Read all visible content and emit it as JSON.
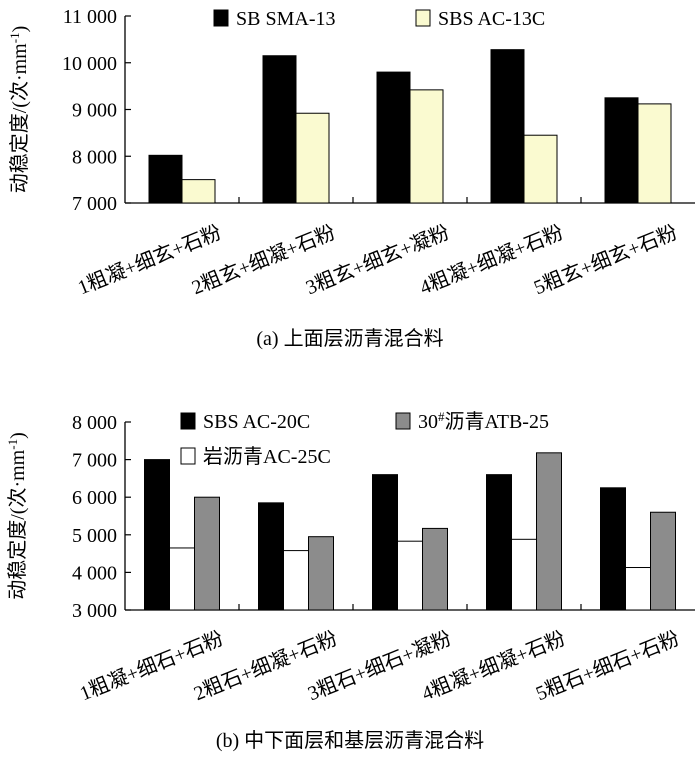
{
  "chart_data": [
    {
      "type": "bar",
      "caption": "(a) 上面层沥青混合料",
      "ylabel": "动稳定度/(次·mm",
      "ylabel_sup": "-1",
      "ylabel_close": ")",
      "ylim": [
        7000,
        11000
      ],
      "yticks": [
        7000,
        8000,
        9000,
        10000,
        11000
      ],
      "ytick_labels": [
        "7 000",
        "8 000",
        "9 000",
        "10 000",
        "11 000"
      ],
      "categories": [
        "1粗凝+细玄+石粉",
        "2粗玄+细凝+石粉",
        "3粗玄+细玄+凝粉",
        "4粗凝+细凝+石粉",
        "5粗玄+细玄+石粉"
      ],
      "series": [
        {
          "name": "SB SMA-13",
          "color": "#000000",
          "values": [
            8020,
            10150,
            9800,
            10280,
            9250
          ]
        },
        {
          "name": "SBS AC-13C",
          "color": "#fafad0",
          "values": [
            7500,
            8920,
            9420,
            8450,
            9120
          ]
        }
      ],
      "legend": "top"
    },
    {
      "type": "bar",
      "caption": "(b) 中下面层和基层沥青混合料",
      "ylabel": "动稳定度/(次·mm",
      "ylabel_sup": "-1",
      "ylabel_close": ")",
      "ylim": [
        3000,
        8000
      ],
      "yticks": [
        3000,
        4000,
        5000,
        6000,
        7000,
        8000
      ],
      "ytick_labels": [
        "3 000",
        "4 000",
        "5 000",
        "6 000",
        "7 000",
        "8 000"
      ],
      "categories": [
        "1粗凝+细石+石粉",
        "2粗石+细凝+石粉",
        "3粗石+细石+凝粉",
        "4粗凝+细凝+石粉",
        "5粗石+细石+石粉"
      ],
      "series": [
        {
          "name": "SBS AC-20C",
          "color": "#000000",
          "values": [
            7000,
            5850,
            6600,
            6600,
            6250
          ]
        },
        {
          "name": "岩沥青AC-25C",
          "color": "#ffffff",
          "values": [
            4650,
            4580,
            4830,
            4880,
            4130
          ]
        },
        {
          "name": "30#沥青ATB-25",
          "name_base": "30",
          "name_sup": "#",
          "name_rest": "沥青ATB-25",
          "color": "#8c8c8c",
          "values": [
            6000,
            4950,
            5170,
            7180,
            5600
          ]
        }
      ],
      "legend": "top"
    }
  ]
}
